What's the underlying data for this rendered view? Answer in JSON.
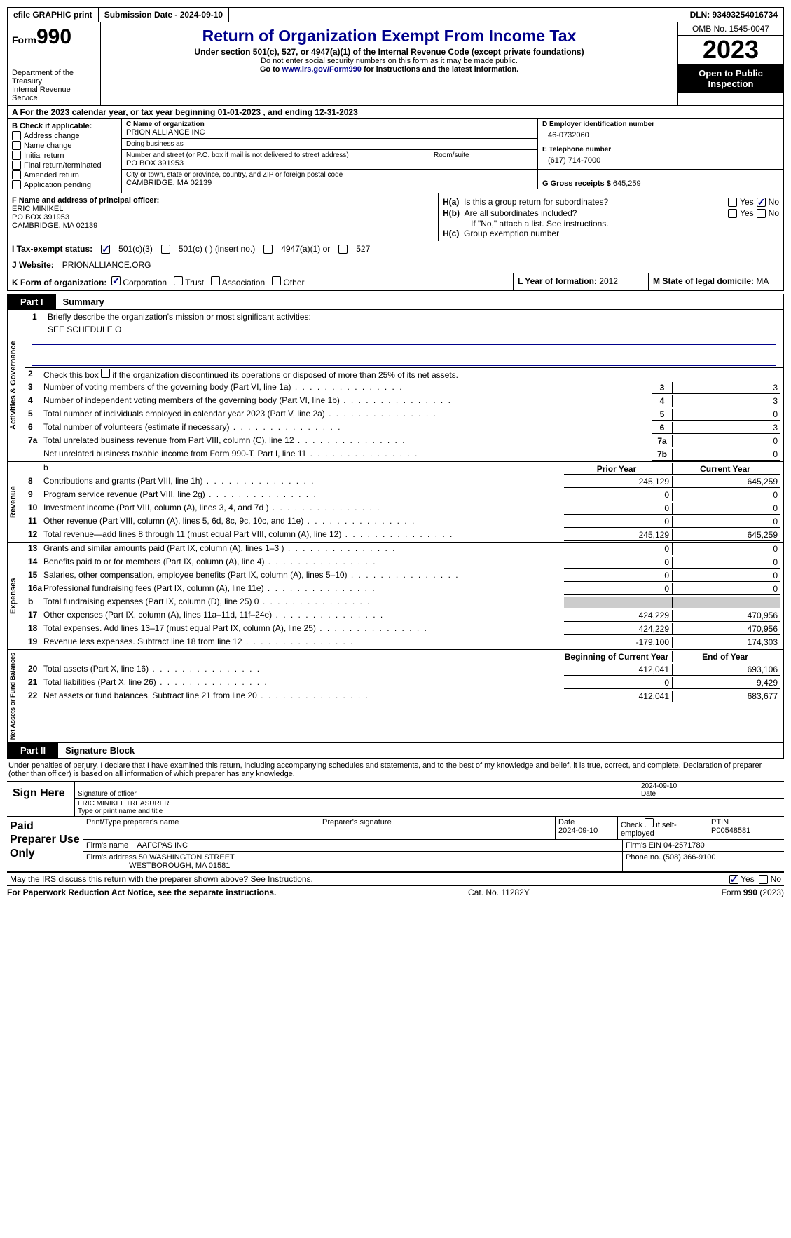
{
  "topbar": {
    "efile": "efile GRAPHIC print",
    "submission": "Submission Date - 2024-09-10",
    "dln": "DLN: 93493254016734"
  },
  "header": {
    "form_word": "Form",
    "form_num": "990",
    "dept": "Department of the Treasury\nInternal Revenue Service",
    "title": "Return of Organization Exempt From Income Tax",
    "sub": "Under section 501(c), 527, or 4947(a)(1) of the Internal Revenue Code (except private foundations)",
    "note1": "Do not enter social security numbers on this form as it may be made public.",
    "note2_pre": "Go to ",
    "note2_link": "www.irs.gov/Form990",
    "note2_post": " for instructions and the latest information.",
    "omb": "OMB No. 1545-0047",
    "year": "2023",
    "inspect": "Open to Public Inspection"
  },
  "rowA": "A For the 2023 calendar year, or tax year beginning 01-01-2023   , and ending 12-31-2023",
  "B": {
    "title": "B Check if applicable:",
    "items": [
      "Address change",
      "Name change",
      "Initial return",
      "Final return/terminated",
      "Amended return",
      "Application pending"
    ]
  },
  "C": {
    "name_lbl": "C Name of organization",
    "name": "PRION ALLIANCE INC",
    "dba_lbl": "Doing business as",
    "dba": "",
    "street_lbl": "Number and street (or P.O. box if mail is not delivered to street address)",
    "street": "PO BOX 391953",
    "room_lbl": "Room/suite",
    "city_lbl": "City or town, state or province, country, and ZIP or foreign postal code",
    "city": "CAMBRIDGE, MA  02139"
  },
  "D": {
    "lbl": "D Employer identification number",
    "val": "46-0732060"
  },
  "E": {
    "lbl": "E Telephone number",
    "val": "(617) 714-7000"
  },
  "G": {
    "lbl": "G Gross receipts $",
    "val": "645,259"
  },
  "F": {
    "lbl": "F  Name and address of principal officer:",
    "name": "ERIC MINIKEL",
    "street": "PO BOX 391953",
    "city": "CAMBRIDGE, MA  02139"
  },
  "H": {
    "a_lbl": "H(a)  Is this a group return for subordinates?",
    "b_lbl": "H(b)  Are all subordinates included?",
    "b_note": "If \"No,\" attach a list. See instructions.",
    "c_lbl": "H(c)  Group exemption number",
    "yes": "Yes",
    "no": "No"
  },
  "I": {
    "lbl": "I   Tax-exempt status:",
    "c3": "501(c)(3)",
    "c": "501(c) (  ) (insert no.)",
    "a4947": "4947(a)(1) or",
    "s527": "527"
  },
  "J": {
    "lbl": "J   Website:",
    "val": "PRIONALLIANCE.ORG"
  },
  "K": {
    "lbl": "K Form of organization:",
    "corp": "Corporation",
    "trust": "Trust",
    "assoc": "Association",
    "other": "Other"
  },
  "L": {
    "lbl": "L Year of formation:",
    "val": "2012"
  },
  "M": {
    "lbl": "M State of legal domicile:",
    "val": "MA"
  },
  "part1": {
    "tag": "Part I",
    "title": "Summary"
  },
  "tabs": {
    "ag": "Activities & Governance",
    "rev": "Revenue",
    "exp": "Expenses",
    "na": "Net Assets or Fund Balances"
  },
  "l1": {
    "num": "1",
    "desc": "Briefly describe the organization's mission or most significant activities:",
    "val": "SEE SCHEDULE O"
  },
  "l2": {
    "num": "2",
    "desc": "Check this box      if the organization discontinued its operations or disposed of more than 25% of its net assets."
  },
  "lines_ag": [
    {
      "num": "3",
      "desc": "Number of voting members of the governing body (Part VI, line 1a)",
      "cell": "3",
      "val": "3"
    },
    {
      "num": "4",
      "desc": "Number of independent voting members of the governing body (Part VI, line 1b)",
      "cell": "4",
      "val": "3"
    },
    {
      "num": "5",
      "desc": "Total number of individuals employed in calendar year 2023 (Part V, line 2a)",
      "cell": "5",
      "val": "0"
    },
    {
      "num": "6",
      "desc": "Total number of volunteers (estimate if necessary)",
      "cell": "6",
      "val": "3"
    },
    {
      "num": "7a",
      "desc": "Total unrelated business revenue from Part VIII, column (C), line 12",
      "cell": "7a",
      "val": "0"
    },
    {
      "num": "",
      "desc": "Net unrelated business taxable income from Form 990-T, Part I, line 11",
      "cell": "7b",
      "val": "0"
    }
  ],
  "rev_hdr": {
    "blank": "b",
    "py": "Prior Year",
    "cy": "Current Year"
  },
  "lines_rev": [
    {
      "num": "8",
      "desc": "Contributions and grants (Part VIII, line 1h)",
      "py": "245,129",
      "cy": "645,259"
    },
    {
      "num": "9",
      "desc": "Program service revenue (Part VIII, line 2g)",
      "py": "0",
      "cy": "0"
    },
    {
      "num": "10",
      "desc": "Investment income (Part VIII, column (A), lines 3, 4, and 7d )",
      "py": "0",
      "cy": "0"
    },
    {
      "num": "11",
      "desc": "Other revenue (Part VIII, column (A), lines 5, 6d, 8c, 9c, 10c, and 11e)",
      "py": "0",
      "cy": "0"
    },
    {
      "num": "12",
      "desc": "Total revenue—add lines 8 through 11 (must equal Part VIII, column (A), line 12)",
      "py": "245,129",
      "cy": "645,259"
    }
  ],
  "lines_exp": [
    {
      "num": "13",
      "desc": "Grants and similar amounts paid (Part IX, column (A), lines 1–3 )",
      "py": "0",
      "cy": "0"
    },
    {
      "num": "14",
      "desc": "Benefits paid to or for members (Part IX, column (A), line 4)",
      "py": "0",
      "cy": "0"
    },
    {
      "num": "15",
      "desc": "Salaries, other compensation, employee benefits (Part IX, column (A), lines 5–10)",
      "py": "0",
      "cy": "0"
    },
    {
      "num": "16a",
      "desc": "Professional fundraising fees (Part IX, column (A), line 11e)",
      "py": "0",
      "cy": "0"
    },
    {
      "num": "b",
      "desc": "Total fundraising expenses (Part IX, column (D), line 25) 0",
      "py": "grey",
      "cy": "grey"
    },
    {
      "num": "17",
      "desc": "Other expenses (Part IX, column (A), lines 11a–11d, 11f–24e)",
      "py": "424,229",
      "cy": "470,956"
    },
    {
      "num": "18",
      "desc": "Total expenses. Add lines 13–17 (must equal Part IX, column (A), line 25)",
      "py": "424,229",
      "cy": "470,956"
    },
    {
      "num": "19",
      "desc": "Revenue less expenses. Subtract line 18 from line 12",
      "py": "-179,100",
      "cy": "174,303"
    }
  ],
  "na_hdr": {
    "py": "Beginning of Current Year",
    "cy": "End of Year"
  },
  "lines_na": [
    {
      "num": "20",
      "desc": "Total assets (Part X, line 16)",
      "py": "412,041",
      "cy": "693,106"
    },
    {
      "num": "21",
      "desc": "Total liabilities (Part X, line 26)",
      "py": "0",
      "cy": "9,429"
    },
    {
      "num": "22",
      "desc": "Net assets or fund balances. Subtract line 21 from line 20",
      "py": "412,041",
      "cy": "683,677"
    }
  ],
  "part2": {
    "tag": "Part II",
    "title": "Signature Block"
  },
  "decl": "Under penalties of perjury, I declare that I have examined this return, including accompanying schedules and statements, and to the best of my knowledge and belief, it is true, correct, and complete. Declaration of preparer (other than officer) is based on all information of which preparer has any knowledge.",
  "sign": {
    "lbl": "Sign Here",
    "sig_lbl": "Signature of officer",
    "date_lbl": "Date",
    "date": "2024-09-10",
    "name": "ERIC MINIKEL TREASURER",
    "type_lbl": "Type or print name and title"
  },
  "prep": {
    "lbl": "Paid Preparer Use Only",
    "name_lbl": "Print/Type preparer's name",
    "sig_lbl": "Preparer's signature",
    "date_lbl": "Date",
    "date": "2024-09-10",
    "self_lbl": "Check       if self-employed",
    "ptin_lbl": "PTIN",
    "ptin": "P00548581",
    "firm_name_lbl": "Firm's name",
    "firm_name": "AAFCPAS INC",
    "firm_ein_lbl": "Firm's EIN",
    "firm_ein": "04-2571780",
    "firm_addr_lbl": "Firm's address",
    "firm_addr1": "50 WASHINGTON STREET",
    "firm_addr2": "WESTBOROUGH, MA  01581",
    "phone_lbl": "Phone no.",
    "phone": "(508) 366-9100"
  },
  "discuss": "May the IRS discuss this return with the preparer shown above? See Instructions.",
  "footer": {
    "pra": "For Paperwork Reduction Act Notice, see the separate instructions.",
    "cat": "Cat. No. 11282Y",
    "form": "Form 990 (2023)"
  }
}
